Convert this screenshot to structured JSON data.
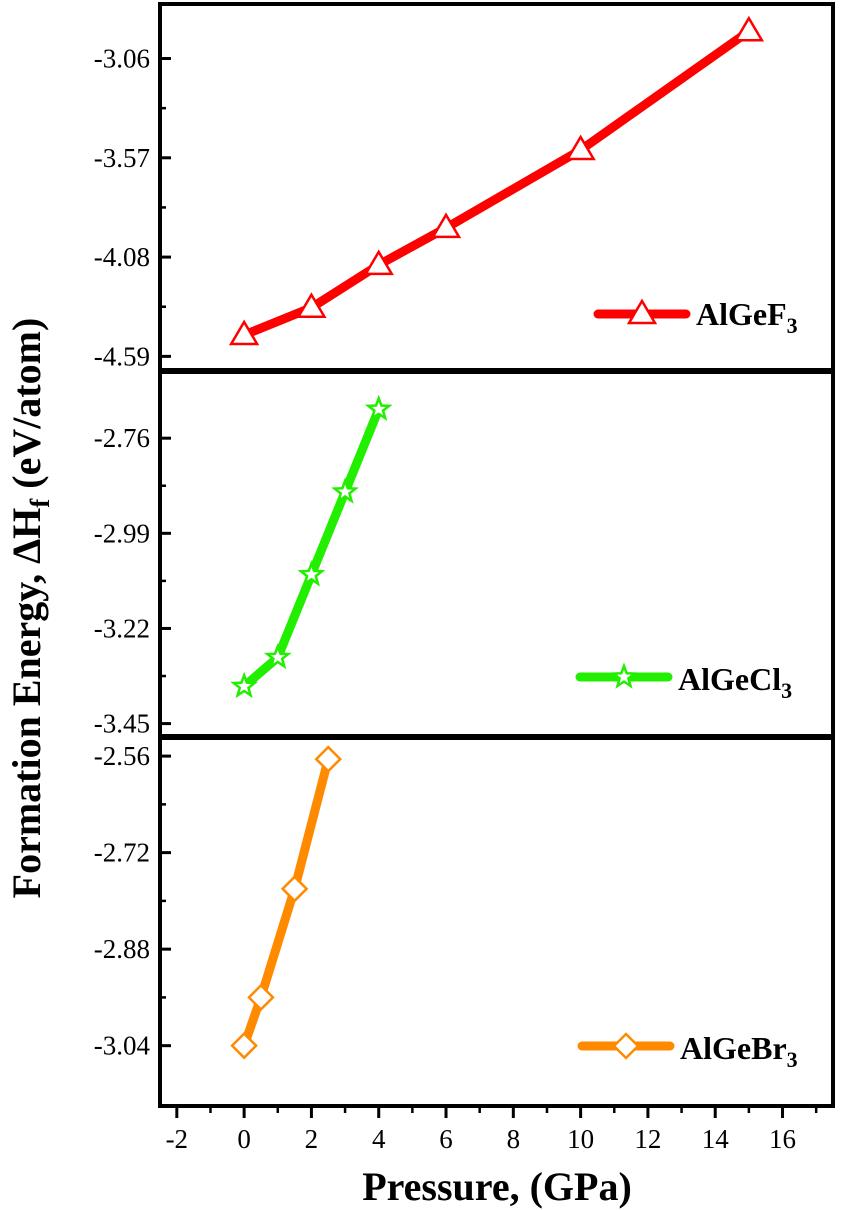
{
  "chart_data": {
    "type": "line",
    "xlabel": "Pressure, (GPa)",
    "ylabel": "Formation Energy, ΔH",
    "ylabel_sub": "f",
    "ylabel_unit": "(eV/atom)",
    "xlim": [
      -2.5,
      17.5
    ],
    "xticks": [
      -2,
      0,
      2,
      4,
      6,
      8,
      10,
      12,
      14,
      16
    ],
    "grid": false,
    "legend_position": "bottom-right",
    "panels": [
      {
        "series": {
          "name_base": "AlGeF",
          "name_sub": "3",
          "color": "#ff0000",
          "marker": "triangle",
          "x": [
            0,
            2,
            4,
            6,
            10,
            15
          ],
          "y": [
            -4.48,
            -4.34,
            -4.12,
            -3.93,
            -3.53,
            -2.92
          ]
        },
        "ylim": [
          -4.66,
          -2.78
        ],
        "yticks": [
          -4.59,
          -4.08,
          -3.57,
          -3.06
        ],
        "ytick_labels": [
          "-4.59",
          "-4.08",
          "-3.57",
          "-3.06"
        ]
      },
      {
        "series": {
          "name_base": "AlGeCl",
          "name_sub": "3",
          "color": "#22ee00",
          "marker": "star",
          "x": [
            0,
            1,
            2,
            3,
            4
          ],
          "y": [
            -3.36,
            -3.29,
            -3.09,
            -2.89,
            -2.69
          ]
        },
        "ylim": [
          -3.48,
          -2.6
        ],
        "yticks": [
          -3.45,
          -3.22,
          -2.99,
          -2.76
        ],
        "ytick_labels": [
          "-3.45",
          "-3.22",
          "-2.99",
          "-2.76"
        ]
      },
      {
        "series": {
          "name_base": "AlGeBr",
          "name_sub": "3",
          "color": "#ff8a00",
          "marker": "diamond",
          "x": [
            0,
            0.5,
            1.5,
            2.5
          ],
          "y": [
            -3.04,
            -2.96,
            -2.78,
            -2.565
          ]
        },
        "ylim": [
          -3.14,
          -2.53
        ],
        "yticks": [
          -3.04,
          -2.88,
          -2.72,
          -2.56
        ],
        "ytick_labels": [
          "-3.04",
          "-2.88",
          "-2.72",
          "-2.56"
        ]
      }
    ]
  }
}
